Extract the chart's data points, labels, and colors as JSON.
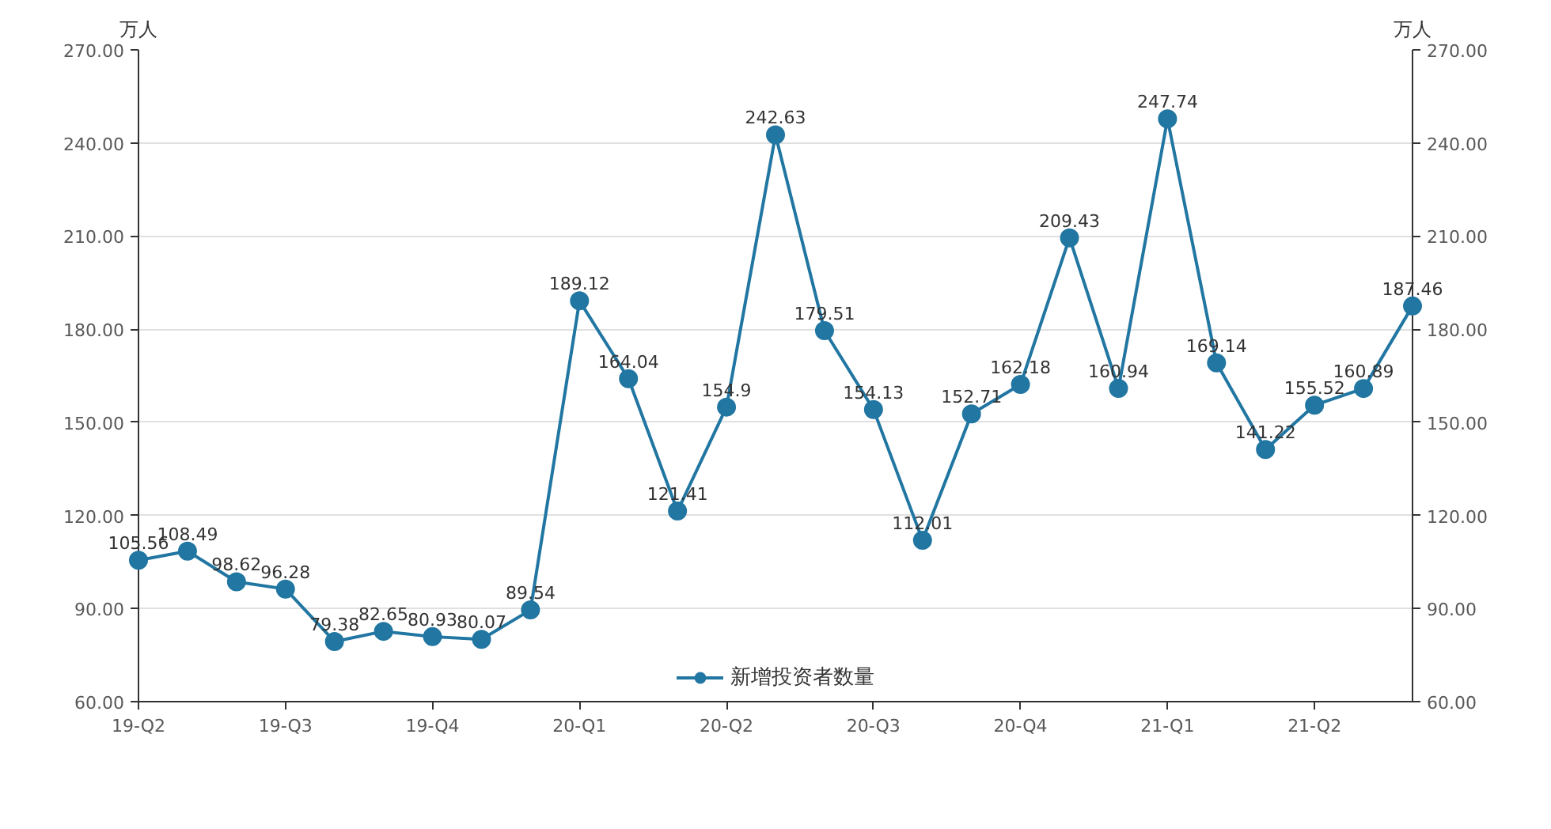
{
  "chart_data": {
    "type": "line",
    "ylabel": "万人",
    "y2label": "万人",
    "categories": [
      "19-Q2",
      null,
      null,
      "19-Q3",
      null,
      null,
      "19-Q4",
      null,
      null,
      "20-Q1",
      null,
      null,
      "20-Q2",
      null,
      null,
      "20-Q3",
      null,
      null,
      "20-Q4",
      null,
      null,
      "21-Q1",
      null,
      null,
      "21-Q2",
      null,
      null
    ],
    "series": [
      {
        "name": "新增投资者数量",
        "color": "#2176a2",
        "values": [
          105.56,
          108.49,
          98.62,
          96.28,
          79.38,
          82.65,
          80.93,
          80.07,
          89.54,
          189.12,
          164.04,
          121.41,
          154.9,
          242.63,
          179.51,
          154.13,
          112.01,
          152.71,
          162.18,
          209.43,
          160.94,
          247.74,
          169.14,
          141.22,
          155.52,
          160.89,
          187.46
        ]
      }
    ],
    "ylim": [
      60,
      270
    ],
    "yticks": [
      {
        "value": 60,
        "label": "60.00"
      },
      {
        "value": 90,
        "label": "90.00"
      },
      {
        "value": 120,
        "label": "120.00"
      },
      {
        "value": 150,
        "label": "150.00"
      },
      {
        "value": 180,
        "label": "180.00"
      },
      {
        "value": 210,
        "label": "210.00"
      },
      {
        "value": 240,
        "label": "240.00"
      },
      {
        "value": 270,
        "label": "270.00"
      }
    ],
    "y2lim": [
      60,
      270
    ],
    "y2ticks": [
      {
        "value": 60,
        "label": "60.00"
      },
      {
        "value": 90,
        "label": "90.00"
      },
      {
        "value": 120,
        "label": "120.00"
      },
      {
        "value": 150,
        "label": "150.00"
      },
      {
        "value": 180,
        "label": "180.00"
      },
      {
        "value": 210,
        "label": "210.00"
      },
      {
        "value": 240,
        "label": "240.00"
      },
      {
        "value": 270,
        "label": "270.00"
      }
    ],
    "grid": "y",
    "legend": "bottom",
    "marker": "circle",
    "line_style": "solid",
    "data_labels": true
  }
}
